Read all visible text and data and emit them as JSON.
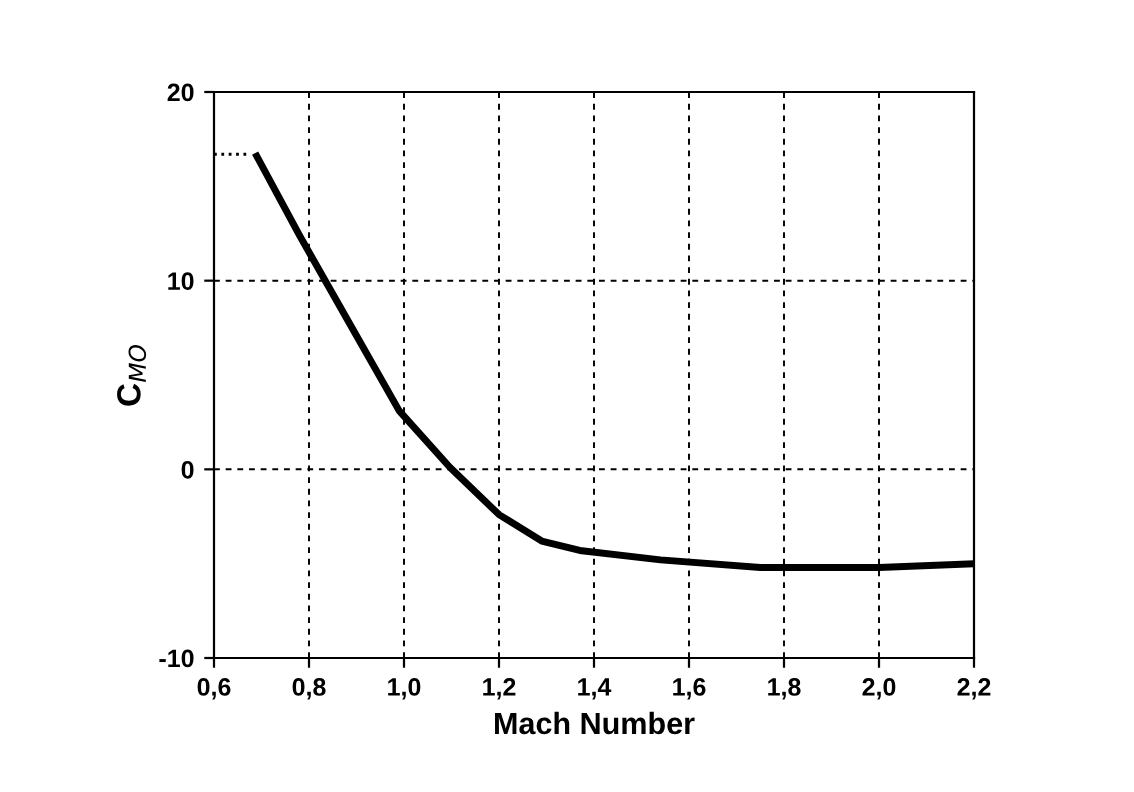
{
  "chart_data": {
    "type": "line",
    "xlabel": "Mach Number",
    "ylabel": "C$_{MO}$",
    "series": [
      {
        "color": "#000000",
        "line_style": "solid",
        "x": [
          0.69,
          0.78,
          0.886,
          0.99,
          1.097,
          1.2,
          1.29,
          1.37,
          1.54,
          1.75,
          2.0,
          2.2
        ],
        "values": [
          16.6,
          12.4,
          7.7,
          3.1,
          0.1,
          -2.4,
          -3.8,
          -4.3,
          -4.8,
          -5.2,
          -5.2,
          -5.0
        ]
      },
      {
        "color": "#000000",
        "line_style": "dotted",
        "x": [
          0.6,
          0.675
        ],
        "values": [
          16.7,
          16.7
        ]
      }
    ],
    "xlim": [
      0.6,
      2.2
    ],
    "xticks": [
      {
        "value": 0.6,
        "label": "0,6"
      },
      {
        "value": 0.8,
        "label": "0,8"
      },
      {
        "value": 1.0,
        "label": "1,0"
      },
      {
        "value": 1.2,
        "label": "1,2"
      },
      {
        "value": 1.4,
        "label": "1,4"
      },
      {
        "value": 1.6,
        "label": "1,6"
      },
      {
        "value": 1.8,
        "label": "1,8"
      },
      {
        "value": 2.0,
        "label": "2,0"
      },
      {
        "value": 2.2,
        "label": "2,2"
      }
    ],
    "ylim": [
      -10,
      20
    ],
    "yticks": [
      -10,
      0,
      10,
      20
    ],
    "grid": true,
    "marker": "none"
  }
}
